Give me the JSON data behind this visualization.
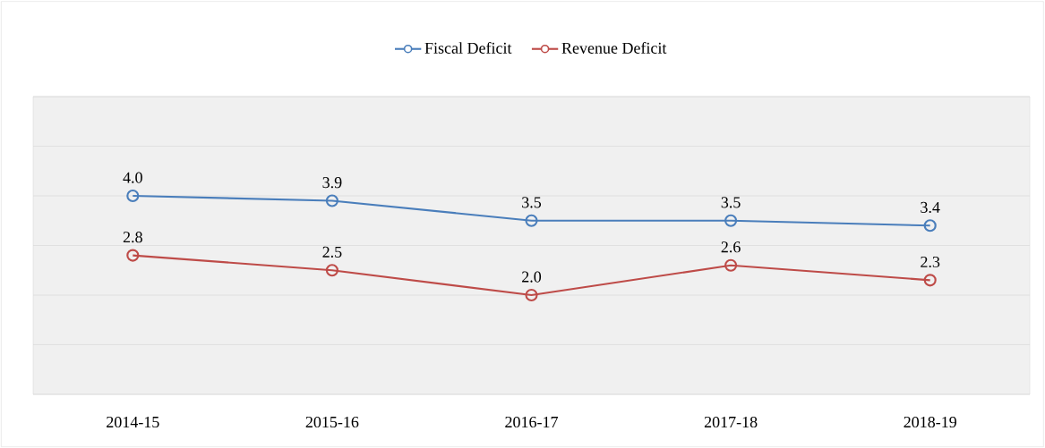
{
  "chart_data": {
    "type": "line",
    "categories": [
      "2014-15",
      "2015-16",
      "2016-17",
      "2017-18",
      "2018-19"
    ],
    "series": [
      {
        "name": "Fiscal Deficit",
        "color": "#4a7ebb",
        "values": [
          4.0,
          3.9,
          3.5,
          3.5,
          3.4
        ],
        "value_labels": [
          "4.0",
          "3.9",
          "3.5",
          "3.5",
          "3.4"
        ]
      },
      {
        "name": "Revenue Deficit",
        "color": "#be4b48",
        "values": [
          2.8,
          2.5,
          2.0,
          2.6,
          2.3
        ],
        "value_labels": [
          "2.8",
          "2.5",
          "2.0",
          "2.6",
          "2.3"
        ]
      }
    ],
    "ylim": [
      0,
      6
    ],
    "yticks": [
      {
        "value": 0,
        "label": null
      },
      {
        "value": 1,
        "label": null
      },
      {
        "value": 2,
        "label": null
      },
      {
        "value": 3,
        "label": null
      },
      {
        "value": 4,
        "label": null
      },
      {
        "value": 5,
        "label": null
      },
      {
        "value": 6,
        "label": null
      }
    ],
    "tick_labels": "x",
    "grid": "y",
    "legend": "top",
    "marker": "circle",
    "line_style": "solid"
  }
}
